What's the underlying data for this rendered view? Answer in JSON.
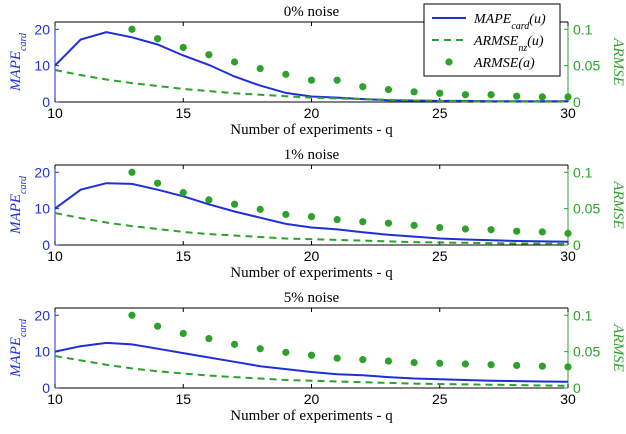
{
  "colors": {
    "mape": "#1f2fd6",
    "armse_nz": "#2ea02c",
    "armse": "#2ea02c"
  },
  "legend": {
    "placement": "top-right",
    "entries": [
      "MAPE_card(u)",
      "ARMSE_nz(u)",
      "ARMSE(a)"
    ]
  },
  "chart_data": [
    {
      "type": "line",
      "title": "0% noise",
      "xlabel": "Number of experiments - q",
      "ylabel_left": "MAPE_card",
      "ylabel_right": "ARMSE",
      "xlim": [
        10,
        30
      ],
      "ylim_left": [
        0,
        22
      ],
      "ylim_right": [
        0,
        0.11
      ],
      "xticks": [
        "10",
        "15",
        "20",
        "25",
        "30"
      ],
      "yticks_left": [
        "0",
        "10",
        "20"
      ],
      "yticks_right": [
        "0",
        "0.05",
        "0.1"
      ],
      "series": [
        {
          "name": "MAPE_card(u)",
          "axis": "left",
          "style": "solid",
          "x": [
            10,
            11,
            12,
            13,
            14,
            15,
            16,
            17,
            18,
            19,
            20,
            21,
            22,
            23,
            24,
            25,
            26,
            27,
            28,
            29,
            30
          ],
          "values": [
            10,
            17.2,
            19.2,
            17.8,
            15.8,
            12.8,
            10.2,
            7,
            4.5,
            2.5,
            1.5,
            1.2,
            0.8,
            0.5,
            0.4,
            0.3,
            0.3,
            0.2,
            0.2,
            0.2,
            0.2
          ]
        },
        {
          "name": "ARMSE_nz(u)",
          "axis": "right",
          "style": "dashed",
          "x": [
            10,
            11,
            12,
            13,
            14,
            15,
            16,
            17,
            18,
            19,
            20,
            21,
            22,
            23,
            24,
            25,
            26,
            27,
            28,
            29,
            30
          ],
          "values": [
            0.044,
            0.037,
            0.031,
            0.026,
            0.022,
            0.018,
            0.015,
            0.012,
            0.01,
            0.008,
            0.006,
            0.005,
            0.004,
            0.003,
            0.002,
            0.0015,
            0.001,
            0.0008,
            0.0006,
            0.0005,
            0.0004
          ]
        },
        {
          "name": "ARMSE(a)",
          "axis": "right",
          "style": "markers",
          "x": [
            13,
            14,
            15,
            16,
            17,
            18,
            19,
            20,
            21,
            22,
            23,
            24,
            25,
            26,
            27,
            28,
            29,
            30
          ],
          "values": [
            0.1,
            0.087,
            0.075,
            0.065,
            0.055,
            0.046,
            0.038,
            0.03,
            0.03,
            0.021,
            0.017,
            0.014,
            0.012,
            0.01,
            0.01,
            0.008,
            0.007,
            0.007
          ]
        }
      ]
    },
    {
      "type": "line",
      "title": "1% noise",
      "xlabel": "Number of experiments - q",
      "ylabel_left": "MAPE_card",
      "ylabel_right": "ARMSE",
      "xlim": [
        10,
        30
      ],
      "ylim_left": [
        0,
        22
      ],
      "ylim_right": [
        0,
        0.11
      ],
      "xticks": [
        "10",
        "15",
        "20",
        "25",
        "30"
      ],
      "yticks_left": [
        "0",
        "10",
        "20"
      ],
      "yticks_right": [
        "0",
        "0.05",
        "0.1"
      ],
      "series": [
        {
          "name": "MAPE_card(u)",
          "axis": "left",
          "style": "solid",
          "x": [
            10,
            11,
            12,
            13,
            14,
            15,
            16,
            17,
            18,
            19,
            20,
            21,
            22,
            23,
            24,
            25,
            26,
            27,
            28,
            29,
            30
          ],
          "values": [
            10,
            15.2,
            17,
            16.8,
            15.2,
            13.4,
            11.2,
            9.2,
            7.5,
            5.8,
            4.8,
            4.3,
            3.5,
            2.8,
            2.3,
            1.8,
            1.5,
            1.3,
            1.1,
            1,
            0.9
          ]
        },
        {
          "name": "ARMSE_nz(u)",
          "axis": "right",
          "style": "dashed",
          "x": [
            10,
            11,
            12,
            13,
            14,
            15,
            16,
            17,
            18,
            19,
            20,
            21,
            22,
            23,
            24,
            25,
            26,
            27,
            28,
            29,
            30
          ],
          "values": [
            0.044,
            0.037,
            0.031,
            0.026,
            0.022,
            0.018,
            0.015,
            0.013,
            0.011,
            0.009,
            0.008,
            0.007,
            0.006,
            0.005,
            0.004,
            0.0035,
            0.003,
            0.0025,
            0.002,
            0.0018,
            0.0015
          ]
        },
        {
          "name": "ARMSE(a)",
          "axis": "right",
          "style": "markers",
          "x": [
            13,
            14,
            15,
            16,
            17,
            18,
            19,
            20,
            21,
            22,
            23,
            24,
            25,
            26,
            27,
            28,
            29,
            30
          ],
          "values": [
            0.1,
            0.085,
            0.072,
            0.062,
            0.056,
            0.049,
            0.042,
            0.039,
            0.035,
            0.032,
            0.03,
            0.027,
            0.024,
            0.022,
            0.021,
            0.019,
            0.018,
            0.016
          ]
        }
      ]
    },
    {
      "type": "line",
      "title": "5% noise",
      "xlabel": "Number of experiments - q",
      "ylabel_left": "MAPE_card",
      "ylabel_right": "ARMSE",
      "xlim": [
        10,
        30
      ],
      "ylim_left": [
        0,
        22
      ],
      "ylim_right": [
        0,
        0.11
      ],
      "xticks": [
        "10",
        "15",
        "20",
        "25",
        "30"
      ],
      "yticks_left": [
        "0",
        "10",
        "20"
      ],
      "yticks_right": [
        "0",
        "0.05",
        "0.1"
      ],
      "series": [
        {
          "name": "MAPE_card(u)",
          "axis": "left",
          "style": "solid",
          "x": [
            10,
            11,
            12,
            13,
            14,
            15,
            16,
            17,
            18,
            19,
            20,
            21,
            22,
            23,
            24,
            25,
            26,
            27,
            28,
            29,
            30
          ],
          "values": [
            10,
            11.5,
            12.4,
            12,
            10.8,
            9.6,
            8.4,
            7.2,
            6,
            5.2,
            4.4,
            3.8,
            3.5,
            3,
            2.6,
            2.4,
            2.2,
            2,
            1.9,
            1.8,
            1.7
          ]
        },
        {
          "name": "ARMSE_nz(u)",
          "axis": "right",
          "style": "dashed",
          "x": [
            10,
            11,
            12,
            13,
            14,
            15,
            16,
            17,
            18,
            19,
            20,
            21,
            22,
            23,
            24,
            25,
            26,
            27,
            28,
            29,
            30
          ],
          "values": [
            0.044,
            0.038,
            0.032,
            0.027,
            0.023,
            0.02,
            0.017,
            0.015,
            0.013,
            0.011,
            0.01,
            0.009,
            0.008,
            0.007,
            0.006,
            0.0055,
            0.005,
            0.0045,
            0.004,
            0.0035,
            0.003
          ]
        },
        {
          "name": "ARMSE(a)",
          "axis": "right",
          "style": "markers",
          "x": [
            13,
            14,
            15,
            16,
            17,
            18,
            19,
            20,
            21,
            22,
            23,
            24,
            25,
            26,
            27,
            28,
            29,
            30
          ],
          "values": [
            0.1,
            0.085,
            0.075,
            0.068,
            0.06,
            0.054,
            0.049,
            0.045,
            0.041,
            0.039,
            0.037,
            0.035,
            0.034,
            0.033,
            0.032,
            0.031,
            0.03,
            0.029
          ]
        }
      ]
    }
  ]
}
